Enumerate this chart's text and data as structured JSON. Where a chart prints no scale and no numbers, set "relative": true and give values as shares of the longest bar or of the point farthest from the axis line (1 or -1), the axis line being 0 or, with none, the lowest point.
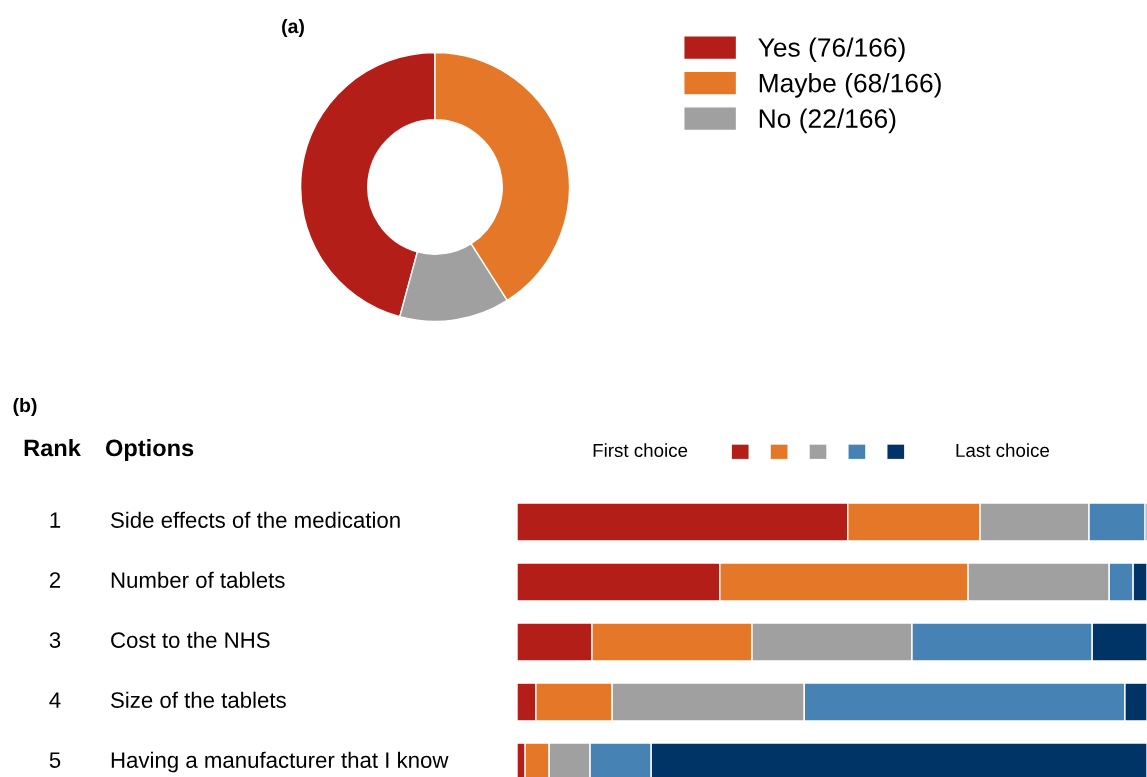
{
  "chart_data": [
    {
      "type": "donut",
      "title": "(a)",
      "categories": [
        "Yes (76/166)",
        "Maybe (68/166)",
        "No (22/166)"
      ],
      "values": [
        76,
        68,
        22
      ],
      "colors": [
        "#b31e18",
        "#e57828",
        "#a0a0a0"
      ],
      "legend": "right"
    },
    {
      "type": "bar",
      "orientation": "horizontal",
      "stacked": true,
      "relative": true,
      "title": "(b)",
      "legend": "top",
      "categories": [
        "Side effects of the medication",
        "Number of tablets",
        "Cost to the NHS",
        "Size of the tablets",
        "Having a manufacturer that I know"
      ],
      "series": [
        {
          "color": "#b31e18",
          "values": [
            0.525,
            0.322,
            0.119,
            0.03,
            0.013
          ]
        },
        {
          "color": "#e57828",
          "values": [
            0.21,
            0.394,
            0.254,
            0.121,
            0.038
          ]
        },
        {
          "color": "#a0a0a0",
          "values": [
            0.173,
            0.224,
            0.254,
            0.305,
            0.065
          ]
        },
        {
          "color": "#4682b4",
          "values": [
            0.089,
            0.038,
            0.286,
            0.509,
            0.097
          ]
        },
        {
          "color": "#003366",
          "values": [
            0.003,
            0.022,
            0.087,
            0.035,
            0.787
          ]
        }
      ],
      "annotations": [
        "Rank",
        "Options",
        "First choice",
        "Last choice",
        "1",
        "2",
        "3",
        "4",
        "5"
      ]
    }
  ]
}
